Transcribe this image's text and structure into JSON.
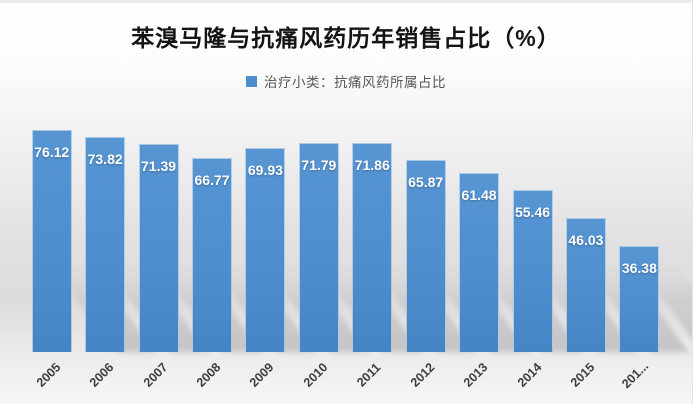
{
  "title": {
    "text": "苯溴马隆与抗痛风药历年销售占比（%）"
  },
  "legend": {
    "label": "治疗小类：抗痛风药所属占比",
    "marker_color": "#4e8ecd",
    "position": "top-center"
  },
  "colors": {
    "bar_fill": "#4e8ecd",
    "bar_border": "rgba(255,255,255,0.55)",
    "value_label": "#ffffff",
    "title_text": "#141414",
    "legend_text": "#575757",
    "tick_text": "#3d3d3d",
    "background_top": "#ffffff",
    "background_mid": "#dcdcdc",
    "background_bottom": "#f6f6f6"
  },
  "chart_data": {
    "type": "bar",
    "title": "苯溴马隆与抗痛风药历年销售占比（%）",
    "legend_entries": [
      "治疗小类：抗痛风药所属占比"
    ],
    "categories": [
      "2005",
      "2006",
      "2007",
      "2008",
      "2009",
      "2010",
      "2011",
      "2012",
      "2013",
      "2014",
      "2015",
      "201..."
    ],
    "values": [
      76.12,
      73.82,
      71.39,
      66.77,
      69.93,
      71.79,
      71.86,
      65.87,
      61.48,
      55.46,
      46.03,
      36.38
    ],
    "xlabel": "",
    "ylabel": "",
    "ylim": [
      0,
      80
    ],
    "grid": false,
    "y_axis_visible": false,
    "data_labels": "inside-end-white-bold",
    "x_tick_rotation": -45,
    "bar_shadow": "diagonal-bottom-right"
  }
}
